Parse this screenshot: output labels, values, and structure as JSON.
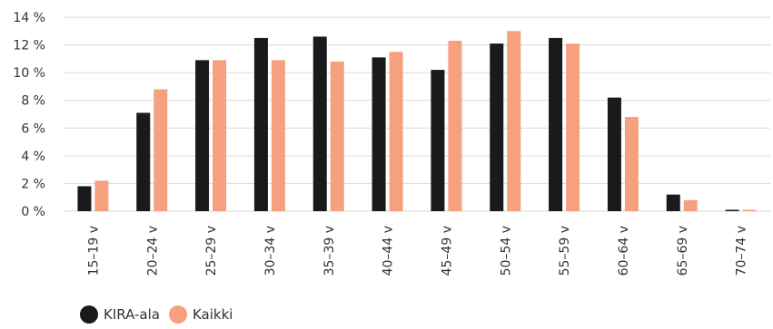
{
  "chart_data": {
    "type": "bar",
    "categories": [
      "15–19 v",
      "20–24 v",
      "25–29 v",
      "30–34 v",
      "35–39 v",
      "40–44 v",
      "45–49 v",
      "50–54 v",
      "55–59 v",
      "60–64 v",
      "65–69 v",
      "70–74 v"
    ],
    "series": [
      {
        "name": "KIRA-ala",
        "color": "#1a1a1a",
        "values": [
          1.8,
          7.1,
          10.9,
          12.5,
          12.6,
          11.1,
          10.2,
          12.1,
          12.5,
          8.2,
          1.2,
          0.1
        ]
      },
      {
        "name": "Kaikki",
        "color": "#f5a07e",
        "values": [
          2.2,
          8.8,
          10.9,
          10.9,
          10.8,
          11.5,
          12.3,
          13.0,
          12.1,
          6.8,
          0.8,
          0.1
        ]
      }
    ],
    "y_ticks": [
      "0 %",
      "2 %",
      "4 %",
      "6 %",
      "8 %",
      "10 %",
      "12 %",
      "14 %"
    ],
    "ylim": [
      0,
      14
    ],
    "grid": true,
    "legend_position": "bottom-left"
  }
}
